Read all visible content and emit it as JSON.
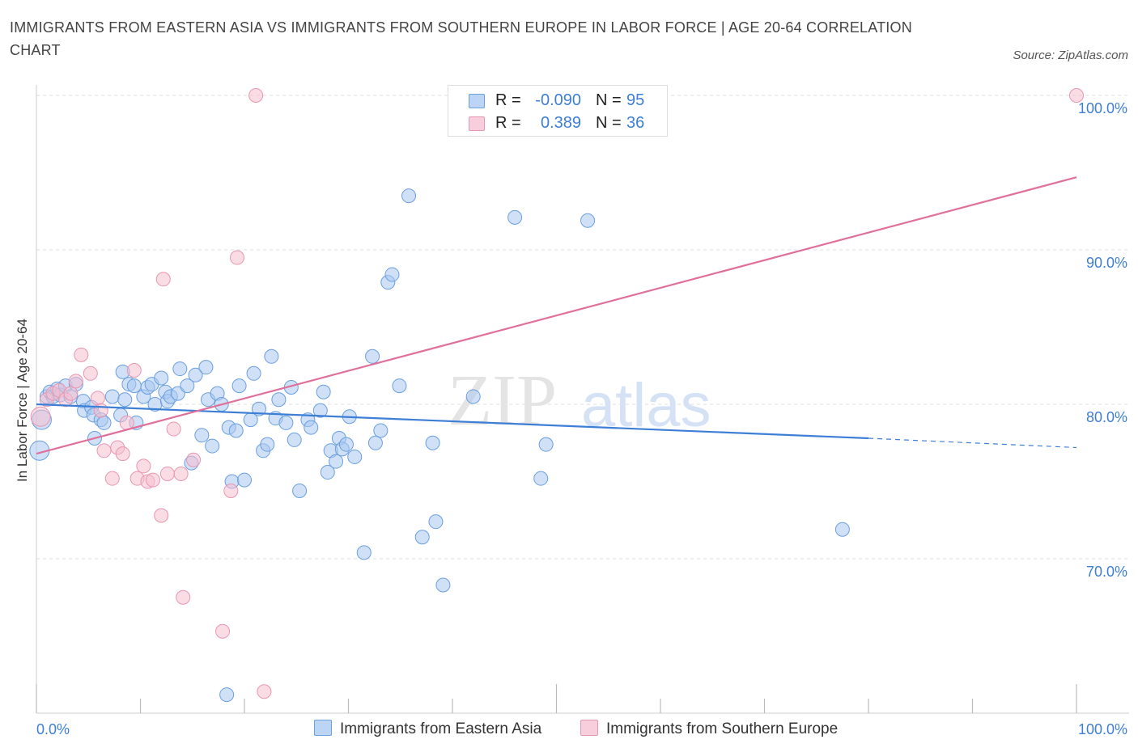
{
  "title": "IMMIGRANTS FROM EASTERN ASIA VS IMMIGRANTS FROM SOUTHERN EUROPE IN LABOR FORCE | AGE 20-64 CORRELATION CHART",
  "source": "Source: ZipAtlas.com",
  "watermark": {
    "zip": "ZIP",
    "atlas": "atlas"
  },
  "legend": {
    "r_label": "R =",
    "n_label": "N =",
    "rows": [
      {
        "r": "-0.090",
        "n": "95"
      },
      {
        "r": "0.389",
        "n": "36"
      }
    ]
  },
  "colors": {
    "blue_fill": "#a9c8f0",
    "blue_stroke": "#6a9fe0",
    "blue_line": "#3d7fd6",
    "pink_fill": "#f6bfd0",
    "pink_stroke": "#e896b1",
    "pink_line": "#e0709a",
    "grid": "#dddddd",
    "tick_label": "#3d7fd6"
  },
  "chart_data": {
    "type": "scatter",
    "title": "IMMIGRANTS FROM EASTERN ASIA VS IMMIGRANTS FROM SOUTHERN EUROPE IN LABOR FORCE | AGE 20-64 CORRELATION CHART",
    "xlabel": "",
    "ylabel": "In Labor Force | Age 20-64",
    "xlim": [
      0,
      100
    ],
    "ylim": [
      60,
      100
    ],
    "x_tick_labels": [
      "0.0%",
      "100.0%"
    ],
    "y_ticks": [
      70,
      80,
      90,
      100
    ],
    "y_tick_labels": [
      "70.0%",
      "80.0%",
      "90.0%",
      "100.0%"
    ],
    "grid": true,
    "series": [
      {
        "name": "Immigrants from Eastern Asia",
        "r": -0.09,
        "n": 95,
        "trend": {
          "x": [
            0,
            80
          ],
          "y": [
            80.0,
            77.8
          ],
          "dashed_to": [
            100,
            77.2
          ]
        },
        "points": [
          [
            0.3,
            77.0
          ],
          [
            0.5,
            79.0
          ],
          [
            1.0,
            80.5
          ],
          [
            1.3,
            80.8
          ],
          [
            1.6,
            80.5
          ],
          [
            2.0,
            81.0
          ],
          [
            2.3,
            80.6
          ],
          [
            2.8,
            81.2
          ],
          [
            3.3,
            80.5
          ],
          [
            3.8,
            81.3
          ],
          [
            4.5,
            80.2
          ],
          [
            4.6,
            79.6
          ],
          [
            5.3,
            79.8
          ],
          [
            5.5,
            79.3
          ],
          [
            5.6,
            77.8
          ],
          [
            6.2,
            79.0
          ],
          [
            6.5,
            78.8
          ],
          [
            7.3,
            80.5
          ],
          [
            8.1,
            79.3
          ],
          [
            8.3,
            82.1
          ],
          [
            8.5,
            80.3
          ],
          [
            8.9,
            81.3
          ],
          [
            9.4,
            81.2
          ],
          [
            9.6,
            78.8
          ],
          [
            10.3,
            80.5
          ],
          [
            10.7,
            81.1
          ],
          [
            11.1,
            81.3
          ],
          [
            11.4,
            80.0
          ],
          [
            12.0,
            81.7
          ],
          [
            12.4,
            80.8
          ],
          [
            12.6,
            80.2
          ],
          [
            12.9,
            80.5
          ],
          [
            13.6,
            80.7
          ],
          [
            13.8,
            82.3
          ],
          [
            14.5,
            81.2
          ],
          [
            14.9,
            76.2
          ],
          [
            15.3,
            81.9
          ],
          [
            15.9,
            78.0
          ],
          [
            16.3,
            82.4
          ],
          [
            16.5,
            80.3
          ],
          [
            16.9,
            77.3
          ],
          [
            17.4,
            80.7
          ],
          [
            17.8,
            80.0
          ],
          [
            18.3,
            61.2
          ],
          [
            18.5,
            78.5
          ],
          [
            18.8,
            75.0
          ],
          [
            19.2,
            78.3
          ],
          [
            19.5,
            81.2
          ],
          [
            20.0,
            75.1
          ],
          [
            20.6,
            79.0
          ],
          [
            20.9,
            82.0
          ],
          [
            21.4,
            79.7
          ],
          [
            21.8,
            77.0
          ],
          [
            22.2,
            77.4
          ],
          [
            22.6,
            83.1
          ],
          [
            23.0,
            79.1
          ],
          [
            23.3,
            80.3
          ],
          [
            24.0,
            78.8
          ],
          [
            24.5,
            81.1
          ],
          [
            24.8,
            77.7
          ],
          [
            25.3,
            74.4
          ],
          [
            26.1,
            79.0
          ],
          [
            26.4,
            78.5
          ],
          [
            27.3,
            79.6
          ],
          [
            27.6,
            80.8
          ],
          [
            28.0,
            75.6
          ],
          [
            28.3,
            77.0
          ],
          [
            28.8,
            76.3
          ],
          [
            29.1,
            77.8
          ],
          [
            29.4,
            77.1
          ],
          [
            29.8,
            77.4
          ],
          [
            30.1,
            79.2
          ],
          [
            30.6,
            76.6
          ],
          [
            31.5,
            70.4
          ],
          [
            32.3,
            83.1
          ],
          [
            32.6,
            77.5
          ],
          [
            33.1,
            78.3
          ],
          [
            33.8,
            87.9
          ],
          [
            34.2,
            88.4
          ],
          [
            34.9,
            81.2
          ],
          [
            35.8,
            93.5
          ],
          [
            37.1,
            71.4
          ],
          [
            38.1,
            77.5
          ],
          [
            38.4,
            72.4
          ],
          [
            39.1,
            68.3
          ],
          [
            42.0,
            80.5
          ],
          [
            46.0,
            92.1
          ],
          [
            48.5,
            75.2
          ],
          [
            49.0,
            77.4
          ],
          [
            53.0,
            91.9
          ],
          [
            77.5,
            71.9
          ]
        ]
      },
      {
        "name": "Immigrants from Southern Europe",
        "r": 0.389,
        "n": 36,
        "trend": {
          "x": [
            0,
            100
          ],
          "y": [
            76.8,
            94.7
          ]
        },
        "points": [
          [
            0.4,
            79.2
          ],
          [
            1.0,
            80.3
          ],
          [
            1.6,
            80.7
          ],
          [
            2.2,
            80.9
          ],
          [
            2.8,
            80.3
          ],
          [
            3.3,
            80.7
          ],
          [
            3.8,
            81.5
          ],
          [
            4.3,
            83.2
          ],
          [
            5.2,
            82.0
          ],
          [
            5.9,
            80.4
          ],
          [
            6.2,
            79.6
          ],
          [
            6.5,
            77.0
          ],
          [
            7.3,
            75.2
          ],
          [
            7.8,
            77.2
          ],
          [
            8.3,
            76.8
          ],
          [
            8.7,
            78.8
          ],
          [
            9.4,
            82.2
          ],
          [
            9.7,
            75.2
          ],
          [
            10.3,
            76.0
          ],
          [
            10.7,
            75.0
          ],
          [
            11.2,
            75.1
          ],
          [
            12.0,
            72.8
          ],
          [
            12.2,
            88.1
          ],
          [
            12.6,
            75.5
          ],
          [
            13.2,
            78.4
          ],
          [
            13.9,
            75.5
          ],
          [
            14.1,
            67.5
          ],
          [
            15.1,
            76.4
          ],
          [
            17.9,
            65.3
          ],
          [
            18.7,
            74.4
          ],
          [
            19.3,
            89.5
          ],
          [
            21.1,
            100.0
          ],
          [
            21.9,
            61.4
          ],
          [
            100.0,
            100.0
          ]
        ]
      }
    ]
  },
  "bottom_legend": [
    {
      "label": "Immigrants from Eastern Asia"
    },
    {
      "label": "Immigrants from Southern Europe"
    }
  ]
}
